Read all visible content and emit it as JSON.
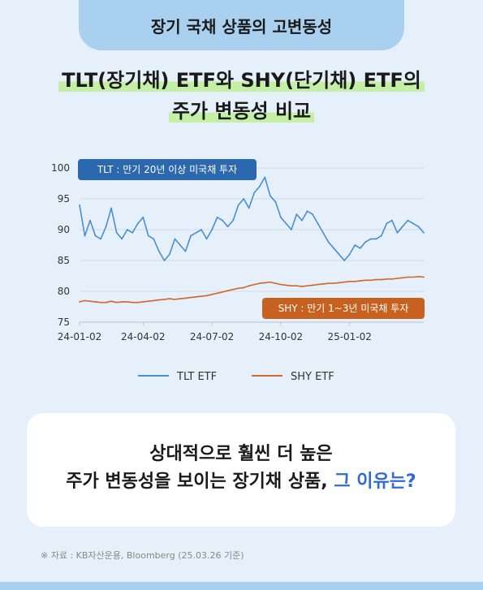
{
  "header": {
    "tab_title": "장기 국채 상품의 고변동성"
  },
  "title": {
    "line1": "TLT(장기채) ETF와 SHY(단기채) ETF의",
    "line2": "주가 변동성 비교"
  },
  "chart_data": {
    "type": "line",
    "title": "",
    "xlabel": "",
    "ylabel": "",
    "ylim": [
      75,
      100
    ],
    "yticks": [
      75,
      80,
      85,
      90,
      95,
      100
    ],
    "xtick_labels": [
      "24-01-02",
      "24-04-02",
      "24-07-02",
      "24-10-02",
      "25-01-02"
    ],
    "xtick_index": [
      0,
      12,
      25,
      38,
      51
    ],
    "x_count": 66,
    "grid": true,
    "legend_position": "bottom",
    "series": [
      {
        "name": "TLT ETF",
        "color": "#4a8ed3",
        "annotation": "TLT : 만기 20년 이상 미국채 투자",
        "annotation_color": "#2c68ad",
        "values": [
          94.0,
          89.0,
          91.5,
          89.0,
          88.5,
          90.5,
          93.5,
          89.5,
          88.5,
          90.0,
          89.5,
          91.0,
          92.0,
          89.0,
          88.5,
          86.5,
          85.0,
          86.0,
          88.5,
          87.5,
          86.5,
          89.0,
          89.5,
          90.0,
          88.5,
          90.0,
          92.0,
          91.5,
          90.5,
          91.5,
          94.0,
          95.0,
          93.5,
          96.0,
          97.0,
          98.5,
          95.5,
          94.5,
          92.0,
          91.0,
          90.0,
          92.5,
          91.5,
          93.0,
          92.5,
          91.0,
          89.5,
          88.0,
          87.0,
          86.0,
          85.0,
          86.0,
          87.5,
          87.0,
          88.0,
          88.5,
          88.5,
          89.0,
          91.0,
          91.5,
          89.5,
          90.5,
          91.5,
          91.0,
          90.5,
          89.5
        ]
      },
      {
        "name": "SHY ETF",
        "color": "#d2682a",
        "annotation": "SHY : 만기 1~3년 미국채 투자",
        "annotation_color": "#c8611f",
        "values": [
          78.3,
          78.5,
          78.4,
          78.3,
          78.2,
          78.2,
          78.4,
          78.2,
          78.3,
          78.3,
          78.2,
          78.2,
          78.3,
          78.4,
          78.5,
          78.6,
          78.7,
          78.8,
          78.7,
          78.8,
          78.9,
          79.0,
          79.1,
          79.2,
          79.3,
          79.5,
          79.7,
          79.9,
          80.1,
          80.3,
          80.5,
          80.6,
          80.9,
          81.1,
          81.3,
          81.4,
          81.5,
          81.3,
          81.1,
          81.0,
          80.9,
          80.9,
          80.8,
          80.9,
          81.0,
          81.1,
          81.2,
          81.3,
          81.3,
          81.4,
          81.5,
          81.6,
          81.6,
          81.7,
          81.8,
          81.8,
          81.9,
          81.9,
          82.0,
          82.0,
          82.1,
          82.2,
          82.3,
          82.3,
          82.4,
          82.3
        ]
      }
    ]
  },
  "card": {
    "line1": "상대적으로 훨씬 더 높은",
    "line2_main": "주가 변동성을 보이는 장기채 상품, ",
    "line2_accent": "그 이유는?"
  },
  "source": "※ 자료 : KB자산운용, Bloomberg (25.03.26 기준)",
  "colors": {
    "background": "#e6f0fa",
    "tab": "#a9d0ef",
    "highlight": "#c4f0a6",
    "accent": "#2f6bd8"
  }
}
